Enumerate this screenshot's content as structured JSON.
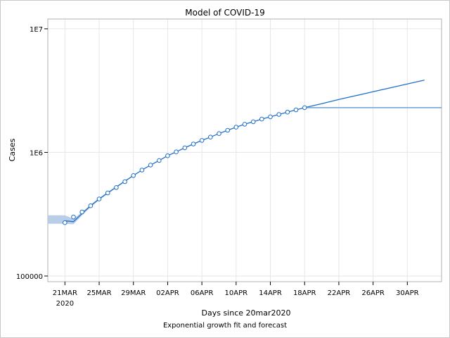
{
  "chart_data": {
    "type": "line",
    "title": "Model of COVID-19",
    "xlabel": "Days since 20mar2020",
    "ylabel": "Cases",
    "footnote": "Exponential growth fit and forecast",
    "y_scale": "log",
    "ylim": [
      90000,
      12000000
    ],
    "xlim": [
      "2020-03-19",
      "2020-05-04"
    ],
    "grid": true,
    "x_ticks": [
      {
        "date": "2020-03-21",
        "label": "21MAR",
        "sublabel": "2020"
      },
      {
        "date": "2020-03-25",
        "label": "25MAR"
      },
      {
        "date": "2020-03-29",
        "label": "29MAR"
      },
      {
        "date": "2020-04-02",
        "label": "02APR"
      },
      {
        "date": "2020-04-06",
        "label": "06APR"
      },
      {
        "date": "2020-04-10",
        "label": "10APR"
      },
      {
        "date": "2020-04-14",
        "label": "14APR"
      },
      {
        "date": "2020-04-18",
        "label": "18APR"
      },
      {
        "date": "2020-04-22",
        "label": "22APR"
      },
      {
        "date": "2020-04-26",
        "label": "26APR"
      },
      {
        "date": "2020-04-30",
        "label": "30APR"
      }
    ],
    "y_ticks": [
      {
        "value": 100000,
        "label": "100000"
      },
      {
        "value": 1000000,
        "label": "1E6"
      },
      {
        "value": 10000000,
        "label": "1E7"
      }
    ],
    "series": [
      {
        "kind": "observed",
        "marker": "circle",
        "color": "#1f6fc9",
        "points": [
          {
            "x": "2020-03-21",
            "y": 270000
          },
          {
            "x": "2020-03-22",
            "y": 300000
          },
          {
            "x": "2020-03-23",
            "y": 330000
          },
          {
            "x": "2020-03-24",
            "y": 370000
          },
          {
            "x": "2020-03-25",
            "y": 420000
          },
          {
            "x": "2020-03-26",
            "y": 470000
          },
          {
            "x": "2020-03-27",
            "y": 520000
          },
          {
            "x": "2020-03-28",
            "y": 580000
          },
          {
            "x": "2020-03-29",
            "y": 650000
          },
          {
            "x": "2020-03-30",
            "y": 720000
          },
          {
            "x": "2020-03-31",
            "y": 790000
          },
          {
            "x": "2020-04-01",
            "y": 860000
          },
          {
            "x": "2020-04-02",
            "y": 940000
          },
          {
            "x": "2020-04-03",
            "y": 1010000
          },
          {
            "x": "2020-04-04",
            "y": 1090000
          },
          {
            "x": "2020-04-05",
            "y": 1170000
          },
          {
            "x": "2020-04-06",
            "y": 1250000
          },
          {
            "x": "2020-04-07",
            "y": 1330000
          },
          {
            "x": "2020-04-08",
            "y": 1420000
          },
          {
            "x": "2020-04-09",
            "y": 1510000
          },
          {
            "x": "2020-04-10",
            "y": 1600000
          },
          {
            "x": "2020-04-11",
            "y": 1690000
          },
          {
            "x": "2020-04-12",
            "y": 1770000
          },
          {
            "x": "2020-04-13",
            "y": 1860000
          },
          {
            "x": "2020-04-14",
            "y": 1940000
          },
          {
            "x": "2020-04-15",
            "y": 2030000
          },
          {
            "x": "2020-04-16",
            "y": 2120000
          },
          {
            "x": "2020-04-17",
            "y": 2210000
          },
          {
            "x": "2020-04-18",
            "y": 2300000
          }
        ]
      },
      {
        "kind": "fit",
        "color": "#1f6fc9",
        "points": [
          {
            "x": "2020-03-21",
            "y": 280000
          },
          {
            "x": "2020-03-22",
            "y": 275000
          },
          {
            "x": "2020-03-23",
            "y": 320000
          },
          {
            "x": "2020-03-24",
            "y": 370000
          },
          {
            "x": "2020-03-25",
            "y": 420000
          },
          {
            "x": "2020-03-26",
            "y": 470000
          },
          {
            "x": "2020-03-27",
            "y": 525000
          },
          {
            "x": "2020-03-28",
            "y": 585000
          },
          {
            "x": "2020-03-29",
            "y": 650000
          },
          {
            "x": "2020-03-30",
            "y": 720000
          },
          {
            "x": "2020-03-31",
            "y": 790000
          },
          {
            "x": "2020-04-01",
            "y": 860000
          },
          {
            "x": "2020-04-02",
            "y": 940000
          },
          {
            "x": "2020-04-03",
            "y": 1010000
          },
          {
            "x": "2020-04-04",
            "y": 1090000
          },
          {
            "x": "2020-04-05",
            "y": 1170000
          },
          {
            "x": "2020-04-06",
            "y": 1250000
          },
          {
            "x": "2020-04-07",
            "y": 1330000
          },
          {
            "x": "2020-04-08",
            "y": 1420000
          },
          {
            "x": "2020-04-09",
            "y": 1510000
          },
          {
            "x": "2020-04-10",
            "y": 1600000
          },
          {
            "x": "2020-04-11",
            "y": 1690000
          },
          {
            "x": "2020-04-12",
            "y": 1770000
          },
          {
            "x": "2020-04-13",
            "y": 1860000
          },
          {
            "x": "2020-04-14",
            "y": 1940000
          },
          {
            "x": "2020-04-15",
            "y": 2030000
          },
          {
            "x": "2020-04-16",
            "y": 2120000
          },
          {
            "x": "2020-04-17",
            "y": 2210000
          },
          {
            "x": "2020-04-18",
            "y": 2300000
          },
          {
            "x": "2020-04-20",
            "y": 2480000
          },
          {
            "x": "2020-04-22",
            "y": 2680000
          },
          {
            "x": "2020-04-24",
            "y": 2880000
          },
          {
            "x": "2020-04-26",
            "y": 3100000
          },
          {
            "x": "2020-04-28",
            "y": 3330000
          },
          {
            "x": "2020-04-30",
            "y": 3580000
          },
          {
            "x": "2020-05-02",
            "y": 3850000
          }
        ]
      },
      {
        "kind": "band",
        "color": "#b8cde6",
        "points": [
          {
            "x": "2020-03-19",
            "lo": 265000,
            "hi": 310000
          },
          {
            "x": "2020-03-21",
            "lo": 265000,
            "hi": 310000
          },
          {
            "x": "2020-03-22",
            "lo": 262000,
            "hi": 290000
          },
          {
            "x": "2020-03-23",
            "lo": 310000,
            "hi": 330000
          },
          {
            "x": "2020-03-24",
            "lo": 360000,
            "hi": 378000
          },
          {
            "x": "2020-03-25",
            "lo": 412000,
            "hi": 428000
          },
          {
            "x": "2020-03-26",
            "lo": 462000,
            "hi": 478000
          },
          {
            "x": "2020-03-27",
            "lo": 517000,
            "hi": 533000
          },
          {
            "x": "2020-03-28",
            "lo": 578000,
            "hi": 592000
          },
          {
            "x": "2020-03-29",
            "lo": 645000,
            "hi": 655000
          }
        ]
      },
      {
        "kind": "forecast_lower",
        "color": "#6f9fd8",
        "points": [
          {
            "x": "2020-04-18",
            "y": 2300000
          },
          {
            "x": "2020-05-04",
            "y": 2300000
          }
        ]
      }
    ]
  }
}
